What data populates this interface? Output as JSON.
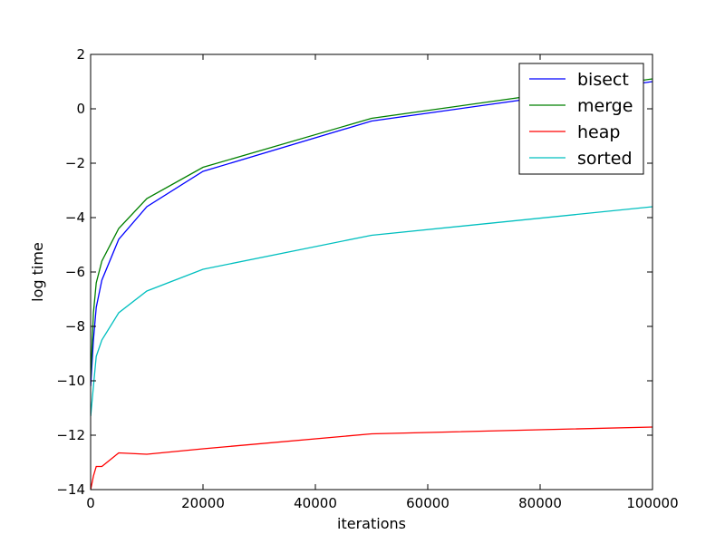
{
  "chart_data": {
    "type": "line",
    "title": "",
    "xlabel": "iterations",
    "ylabel": "log time",
    "xlim": [
      0,
      100000
    ],
    "ylim": [
      -14,
      2
    ],
    "xticks": [
      0,
      20000,
      40000,
      60000,
      80000,
      100000
    ],
    "xtick_labels": [
      "0",
      "20000",
      "40000",
      "60000",
      "80000",
      "100000"
    ],
    "yticks": [
      -14,
      -12,
      -10,
      -8,
      -6,
      -4,
      -2,
      0,
      2
    ],
    "ytick_labels": [
      "−14",
      "−12",
      "−10",
      "−8",
      "−6",
      "−4",
      "−2",
      "0",
      "2"
    ],
    "grid": false,
    "legend_position": "top-right",
    "x": [
      10,
      500,
      1000,
      2000,
      5000,
      10000,
      20000,
      50000,
      100000
    ],
    "series": [
      {
        "name": "bisect",
        "color": "#0000ff",
        "values": [
          -10.2,
          -8.5,
          -7.3,
          -6.3,
          -4.8,
          -3.6,
          -2.3,
          -0.45,
          1.0
        ]
      },
      {
        "name": "merge",
        "color": "#008000",
        "values": [
          -9.9,
          -7.5,
          -6.4,
          -5.6,
          -4.4,
          -3.3,
          -2.15,
          -0.35,
          1.1
        ]
      },
      {
        "name": "heap",
        "color": "#ff0000",
        "values": [
          -14.0,
          -13.5,
          -13.15,
          -13.15,
          -12.65,
          -12.7,
          -12.5,
          -11.95,
          -11.7
        ]
      },
      {
        "name": "sorted",
        "color": "#00bfbf",
        "values": [
          -11.3,
          -10.2,
          -9.1,
          -8.5,
          -7.5,
          -6.7,
          -5.9,
          -4.65,
          -3.6
        ]
      }
    ]
  }
}
